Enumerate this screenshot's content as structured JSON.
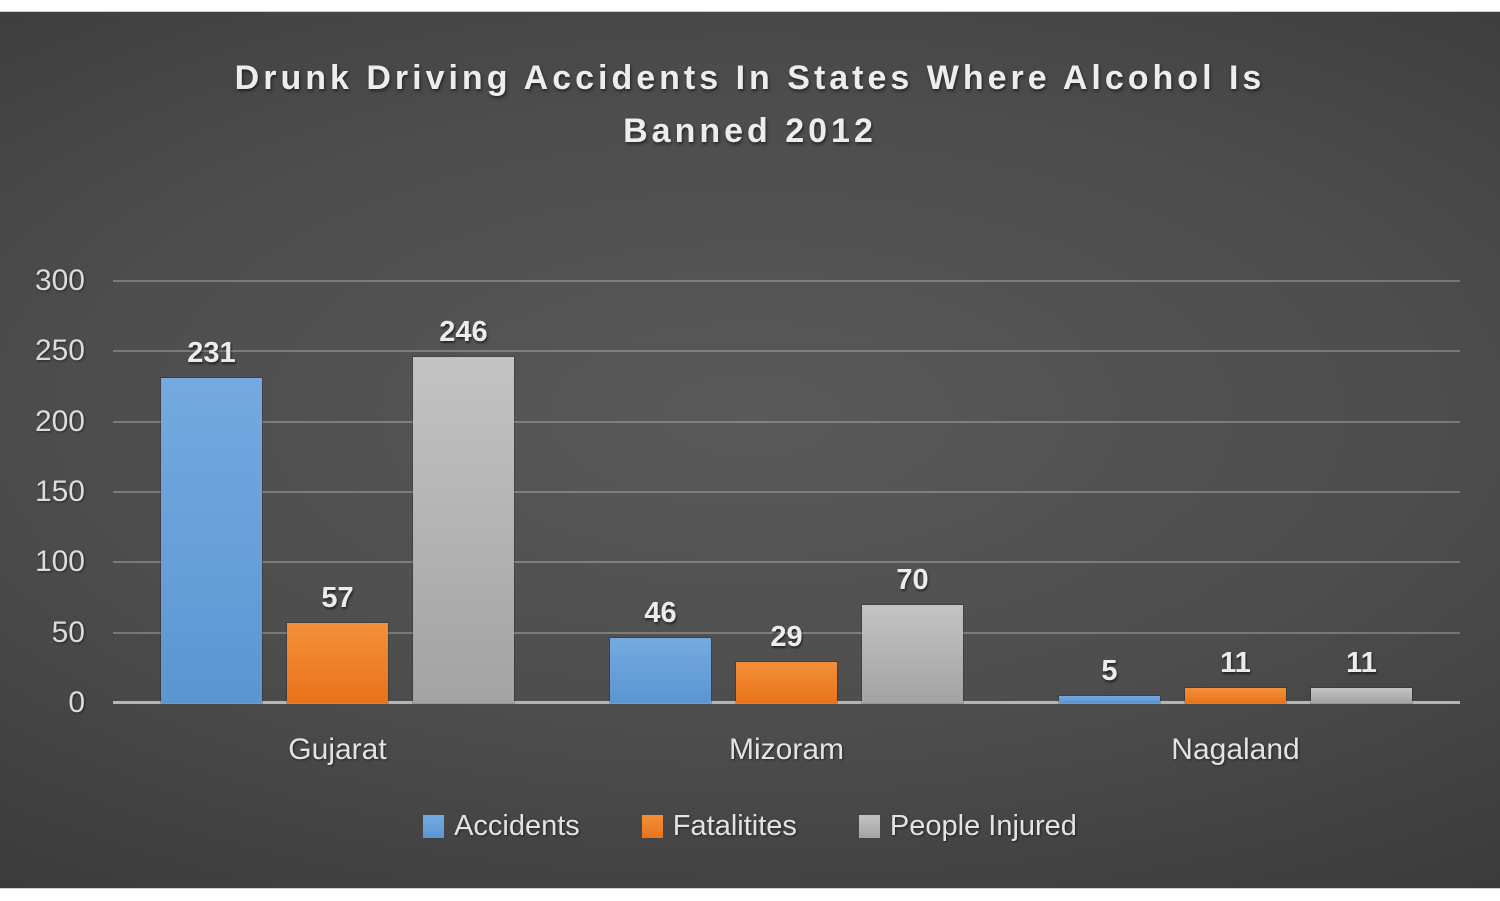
{
  "header": {
    "title_line1": "Drunk Driving Accidents In States Where Alcohol Is",
    "title_line2": "Banned 2012"
  },
  "colors": {
    "accidents_top": "#75a9e0",
    "accidents": "#5b96d2",
    "fatalities_top": "#f3903a",
    "fatalities": "#e9731b",
    "injured_top": "#c3c3c3",
    "injured": "#a3a3a3",
    "background_center": "#595959",
    "background_edge": "#292929",
    "text": "#ededed"
  },
  "chart_data": {
    "type": "bar",
    "title": "Drunk Driving Accidents In States Where Alcohol Is Banned 2012",
    "categories": [
      "Gujarat",
      "Mizoram",
      "Nagaland"
    ],
    "series": [
      {
        "name": "Accidents",
        "color": "#5b96d2",
        "color_top": "#75a9e0",
        "values": [
          231,
          46,
          5
        ]
      },
      {
        "name": "Fatalitites",
        "color": "#e9731b",
        "color_top": "#f3903a",
        "values": [
          57,
          29,
          11
        ]
      },
      {
        "name": "People Injured",
        "color": "#a3a3a3",
        "color_top": "#c3c3c3",
        "values": [
          246,
          70,
          11
        ]
      }
    ],
    "xlabel": "",
    "ylabel": "",
    "ylim": [
      0,
      300
    ],
    "y_ticks": [
      0,
      50,
      100,
      150,
      200,
      250,
      300
    ],
    "grid": true,
    "data_labels": true,
    "legend_position": "bottom"
  }
}
